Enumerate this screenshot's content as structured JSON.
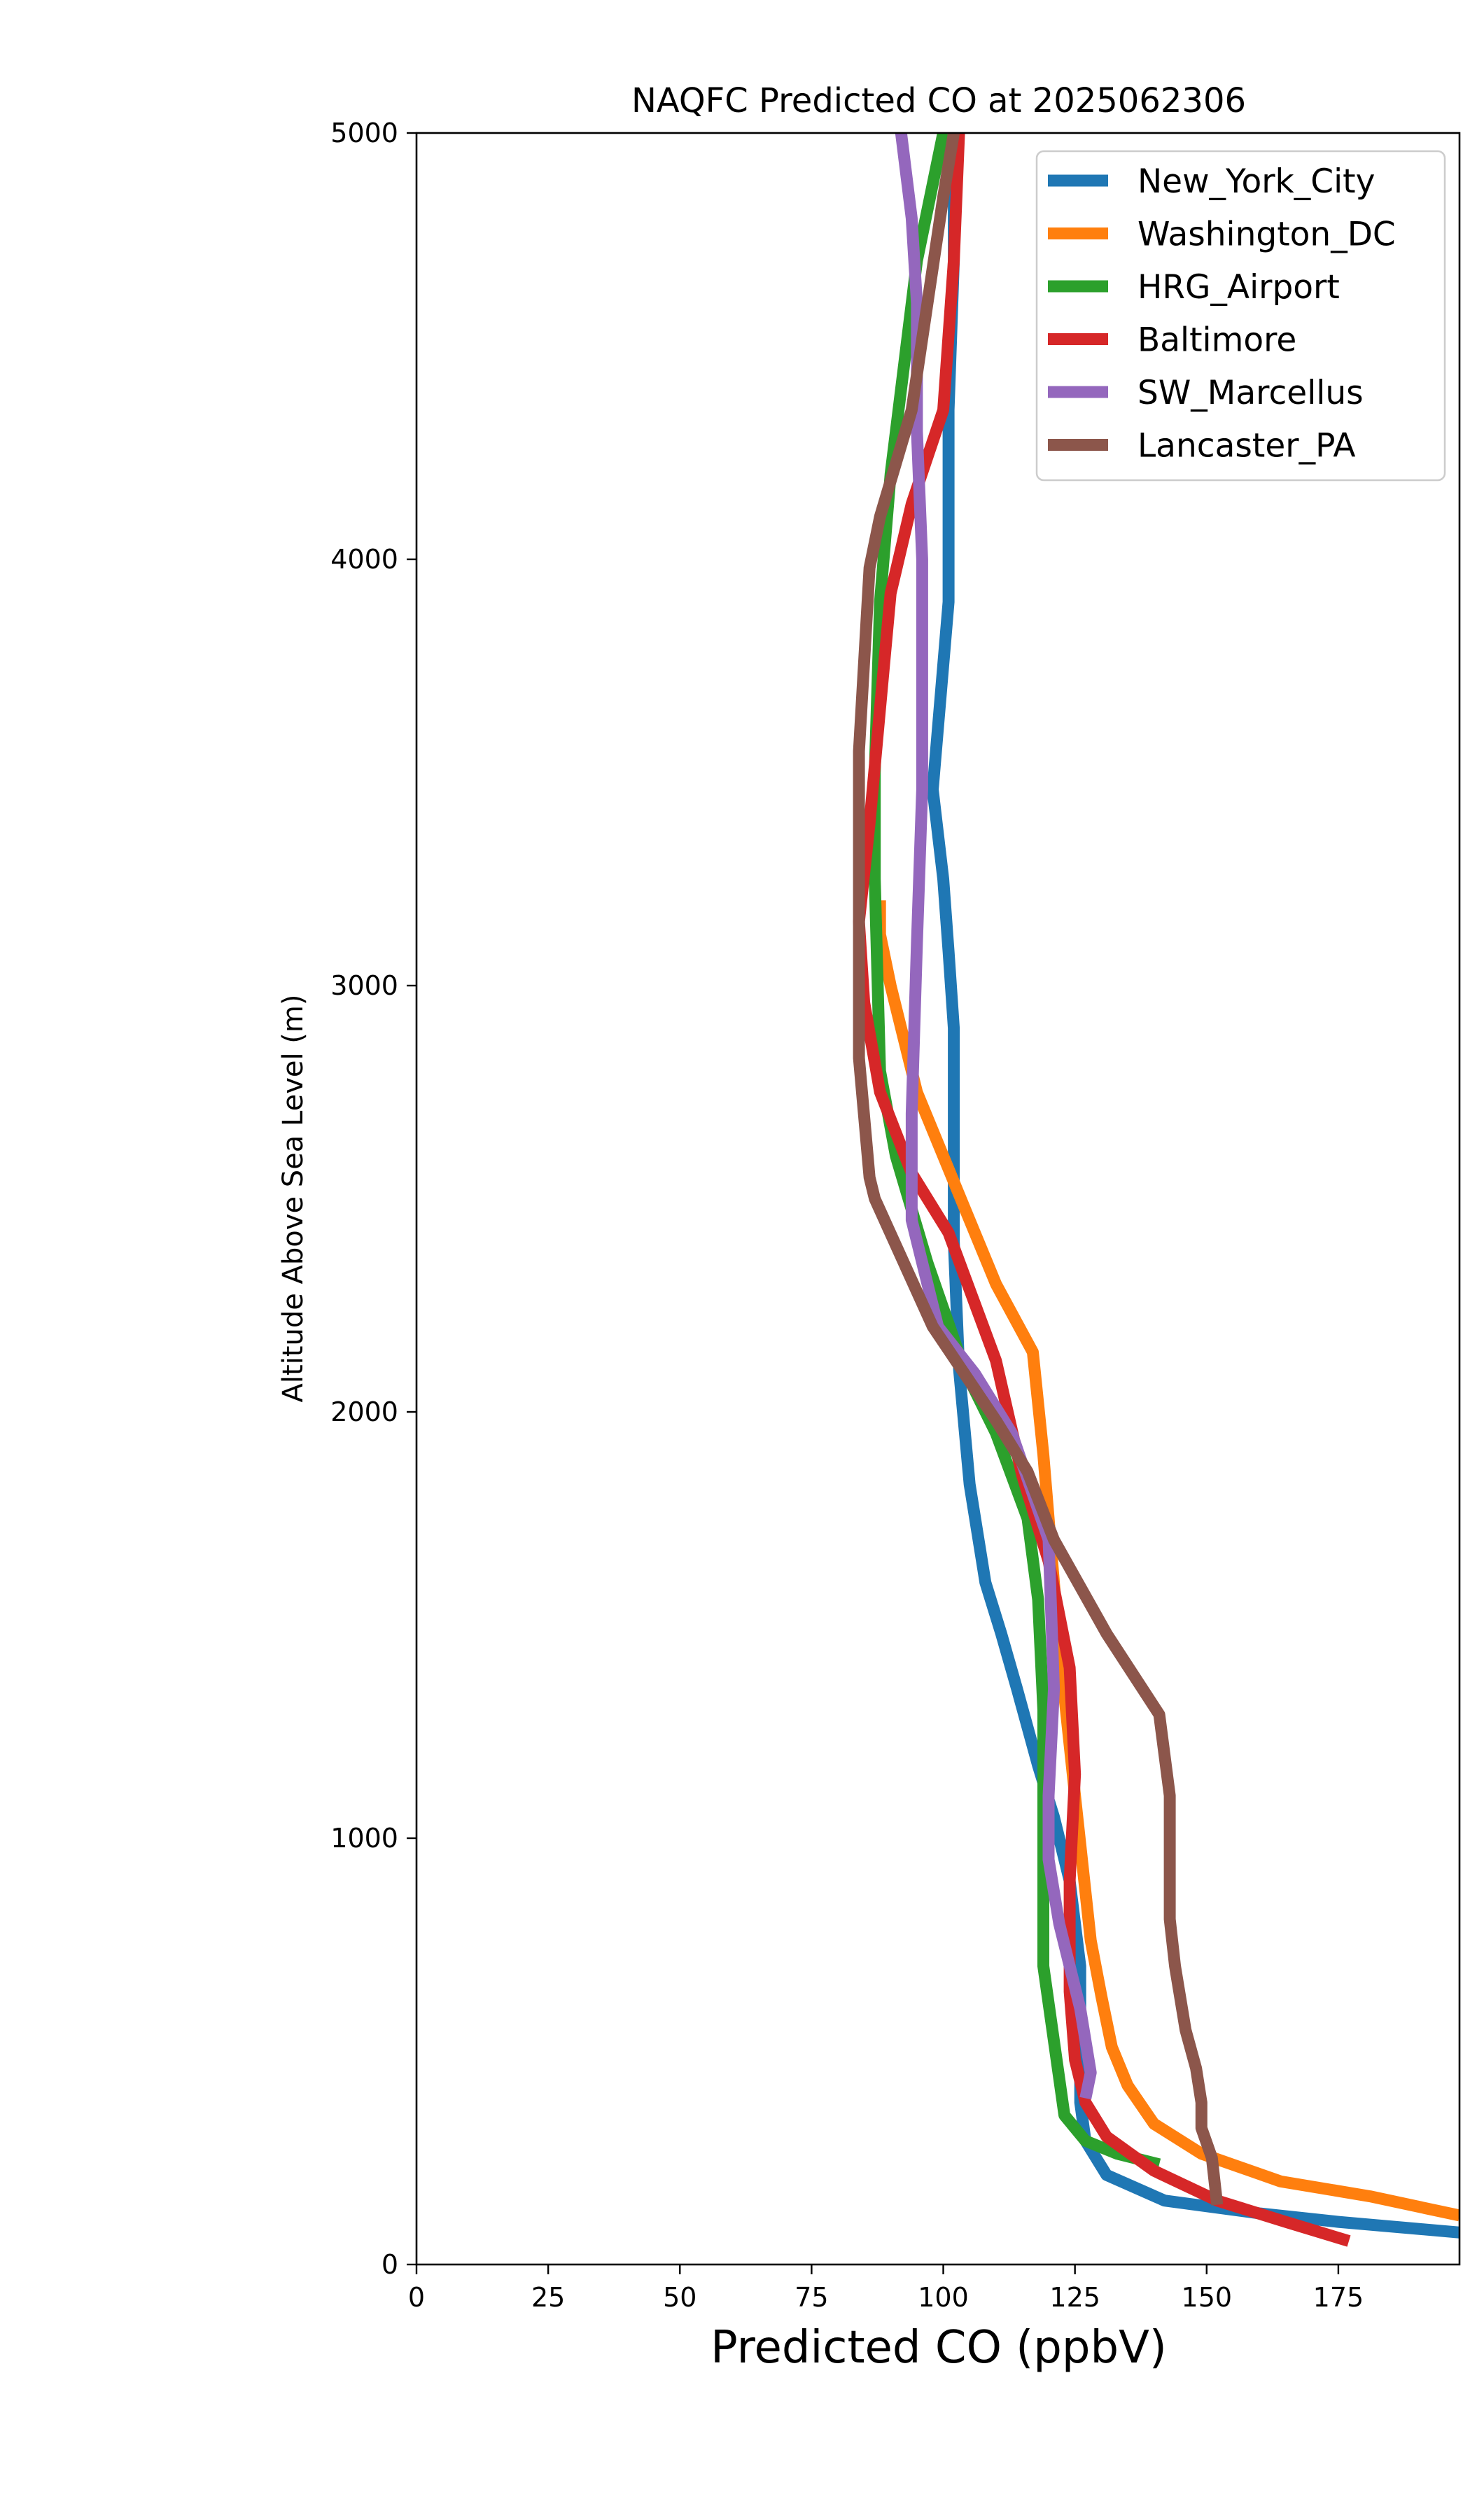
{
  "chart_data": {
    "type": "line",
    "title": "NAQFC Predicted CO at 2025062306",
    "xlabel": "Predicted CO (ppbV)",
    "ylabel": "Altitude Above Sea Level (m)",
    "xlim": [
      0,
      198
    ],
    "ylim": [
      0,
      5000
    ],
    "xticks": [
      0,
      25,
      50,
      75,
      100,
      125,
      150,
      175
    ],
    "yticks": [
      0,
      1000,
      2000,
      3000,
      4000,
      5000
    ],
    "grid": false,
    "legend_position": "top-right",
    "series": [
      {
        "name": "New_York_City",
        "color": "#1f77b4",
        "x": [
          198,
          175,
          160,
          142,
          131,
          127,
          126,
          126,
          124,
          121,
          118,
          114,
          111,
          108,
          105,
          103,
          102,
          102,
          102,
          101,
          100,
          98,
          101,
          101,
          102,
          102
        ],
        "y": [
          75,
          100,
          120,
          150,
          210,
          290,
          380,
          700,
          900,
          1050,
          1170,
          1350,
          1480,
          1600,
          1830,
          2100,
          2400,
          2720,
          2900,
          3080,
          3250,
          3460,
          3900,
          4350,
          4700,
          5000
        ]
      },
      {
        "name": "Washington_DC",
        "color": "#ff7f0e",
        "x": [
          198,
          181,
          164,
          149,
          140,
          135,
          132,
          130,
          128,
          125,
          122,
          119,
          117,
          110,
          104,
          95,
          90,
          88,
          88
        ],
        "y": [
          115,
          160,
          195,
          260,
          330,
          420,
          510,
          630,
          760,
          1100,
          1450,
          1900,
          2140,
          2300,
          2480,
          2750,
          3000,
          3120,
          3200
        ]
      },
      {
        "name": "HRG_Airport",
        "color": "#2ca02c",
        "x": [
          141,
          133,
          127,
          123,
          119,
          119,
          118,
          116,
          110,
          104,
          97,
          91,
          88,
          87,
          87,
          88,
          90,
          95,
          100
        ],
        "y": [
          235,
          260,
          290,
          350,
          700,
          1300,
          1560,
          1750,
          1950,
          2100,
          2350,
          2600,
          2800,
          3250,
          3500,
          3900,
          4200,
          4700,
          5000
        ]
      },
      {
        "name": "Baltimore",
        "color": "#d62728",
        "x": [
          177,
          165,
          152,
          140,
          131,
          127,
          125,
          124,
          124,
          125,
          124,
          120,
          115,
          110,
          101,
          94,
          88,
          85,
          84,
          86,
          88,
          90,
          94,
          100,
          102,
          103
        ],
        "y": [
          55,
          100,
          150,
          220,
          300,
          380,
          480,
          640,
          900,
          1150,
          1400,
          1650,
          1850,
          2120,
          2420,
          2560,
          2750,
          2960,
          3150,
          3380,
          3650,
          3920,
          4130,
          4350,
          4700,
          5000
        ]
      },
      {
        "name": "SW_Marcellus",
        "color": "#9467bd",
        "x": [
          127,
          128,
          126,
          124,
          122,
          120,
          120,
          121,
          120,
          113,
          106,
          99,
          94,
          94,
          95,
          96,
          96,
          95,
          95,
          94,
          92
        ],
        "y": [
          390,
          450,
          600,
          700,
          800,
          950,
          1100,
          1350,
          1700,
          1950,
          2090,
          2200,
          2450,
          2700,
          3100,
          3460,
          4000,
          4300,
          4600,
          4800,
          5000
        ]
      },
      {
        "name": "Lancaster_PA",
        "color": "#8c564b",
        "x": [
          152,
          151,
          149,
          149,
          148,
          146,
          144,
          143,
          143,
          143,
          141,
          131,
          121,
          116,
          110,
          98,
          87,
          86,
          84,
          84,
          84,
          86,
          88,
          94,
          97,
          100,
          102
        ],
        "y": [
          140,
          250,
          320,
          380,
          460,
          550,
          700,
          810,
          950,
          1100,
          1290,
          1480,
          1700,
          1860,
          1980,
          2200,
          2500,
          2550,
          2830,
          3050,
          3550,
          3980,
          4100,
          4350,
          4600,
          4850,
          5000
        ]
      }
    ]
  }
}
